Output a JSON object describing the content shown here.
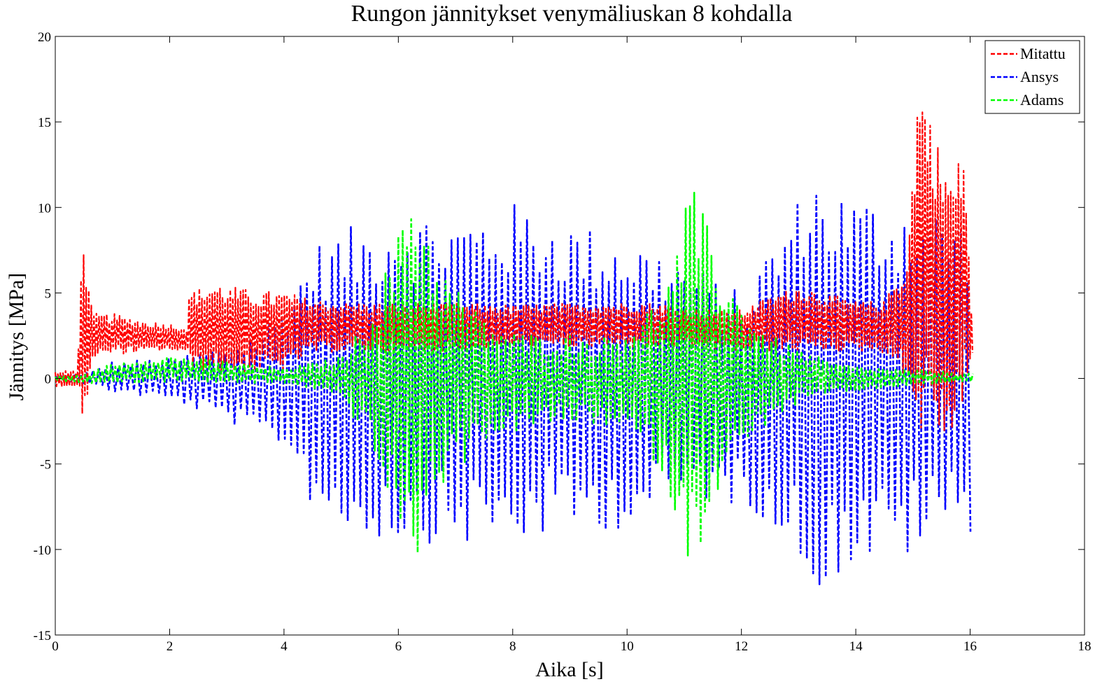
{
  "chart_data": {
    "type": "line",
    "title": "Rungon jännitykset venymäliuskan 8 kohdalla",
    "xlabel": "Aika [s]",
    "ylabel": "Jännitys [MPa]",
    "xlim": [
      0,
      18
    ],
    "ylim": [
      -15,
      20
    ],
    "x_ticks": [
      0,
      2,
      4,
      6,
      8,
      10,
      12,
      14,
      16,
      18
    ],
    "y_ticks": [
      -15,
      -10,
      -5,
      0,
      5,
      10,
      15,
      20
    ],
    "x_tick_labels": [
      "0",
      "2",
      "4",
      "6",
      "8",
      "10",
      "12",
      "14",
      "16",
      "18"
    ],
    "y_tick_labels": [
      "-15",
      "-10",
      "-5",
      "0",
      "5",
      "10",
      "15",
      "20"
    ],
    "grid": false,
    "legend_position": "top-right",
    "series": [
      {
        "name": "Mitattu",
        "color": "#ff0000",
        "style": "dashed",
        "envelope_upper": [
          [
            0,
            0.4
          ],
          [
            0.38,
            0.5
          ],
          [
            0.45,
            6
          ],
          [
            0.5,
            9.7
          ],
          [
            0.56,
            6
          ],
          [
            0.65,
            3.8
          ],
          [
            1,
            3.8
          ],
          [
            1.5,
            3.4
          ],
          [
            2,
            3.2
          ],
          [
            2.3,
            3
          ],
          [
            2.35,
            5.2
          ],
          [
            2.8,
            5.6
          ],
          [
            3.5,
            5.1
          ],
          [
            4,
            5.1
          ],
          [
            4.5,
            4.6
          ],
          [
            5.5,
            4.4
          ],
          [
            6,
            4.4
          ],
          [
            7,
            4.4
          ],
          [
            8,
            4.3
          ],
          [
            9,
            4.4
          ],
          [
            10,
            4.5
          ],
          [
            10.5,
            4.4
          ],
          [
            11,
            4.2
          ],
          [
            12,
            4
          ],
          [
            12.5,
            4.8
          ],
          [
            13,
            5.4
          ],
          [
            13.5,
            5
          ],
          [
            14,
            4.5
          ],
          [
            14.5,
            4.5
          ],
          [
            14.9,
            7
          ],
          [
            15.1,
            18.1
          ],
          [
            15.3,
            15.5
          ],
          [
            15.5,
            13
          ],
          [
            15.7,
            12
          ],
          [
            15.9,
            13.7
          ],
          [
            16.05,
            2
          ]
        ],
        "envelope_lower": [
          [
            0,
            -0.5
          ],
          [
            0.38,
            -0.5
          ],
          [
            0.45,
            -2
          ],
          [
            0.5,
            -4.9
          ],
          [
            0.56,
            -1
          ],
          [
            0.65,
            1.2
          ],
          [
            1,
            1.4
          ],
          [
            1.5,
            1.5
          ],
          [
            2,
            1.6
          ],
          [
            2.3,
            1.5
          ],
          [
            2.35,
            0.5
          ],
          [
            3,
            0.3
          ],
          [
            4,
            0.5
          ],
          [
            4.5,
            1.5
          ],
          [
            5.5,
            1.6
          ],
          [
            6,
            1.5
          ],
          [
            7,
            1.6
          ],
          [
            8,
            1.8
          ],
          [
            9,
            1.8
          ],
          [
            10,
            1.8
          ],
          [
            10.5,
            1.8
          ],
          [
            11,
            1.8
          ],
          [
            12,
            1.6
          ],
          [
            13,
            1.6
          ],
          [
            14,
            1.6
          ],
          [
            14.5,
            1.5
          ],
          [
            14.9,
            0
          ],
          [
            15.1,
            -3.5
          ],
          [
            15.3,
            -2.5
          ],
          [
            15.5,
            -3.5
          ],
          [
            15.7,
            -3.8
          ],
          [
            15.9,
            -1
          ],
          [
            16.05,
            1.5
          ]
        ]
      },
      {
        "name": "Ansys",
        "color": "#0000ff",
        "style": "dashed",
        "envelope_upper": [
          [
            0,
            0.2
          ],
          [
            0.5,
            0.3
          ],
          [
            1,
            1
          ],
          [
            2,
            1.2
          ],
          [
            3,
            2
          ],
          [
            3.5,
            2.7
          ],
          [
            4,
            4.3
          ],
          [
            4.5,
            7.9
          ],
          [
            5,
            8.7
          ],
          [
            5.5,
            9.2
          ],
          [
            6,
            10
          ],
          [
            6.5,
            9.8
          ],
          [
            7,
            9.6
          ],
          [
            7.5,
            10
          ],
          [
            8,
            10.3
          ],
          [
            8.5,
            10
          ],
          [
            9,
            9.3
          ],
          [
            9.5,
            8.8
          ],
          [
            10,
            8.6
          ],
          [
            10.5,
            7.7
          ],
          [
            11,
            7
          ],
          [
            11.5,
            6
          ],
          [
            12,
            5
          ],
          [
            12.5,
            8
          ],
          [
            13,
            10.8
          ],
          [
            13.1,
            12.7
          ],
          [
            13.5,
            11.7
          ],
          [
            14,
            10.9
          ],
          [
            14.5,
            10.6
          ],
          [
            15,
            10.6
          ],
          [
            15.5,
            10
          ],
          [
            16,
            9.5
          ],
          [
            16.05,
            9
          ]
        ],
        "envelope_lower": [
          [
            0,
            -0.1
          ],
          [
            0.5,
            -0.3
          ],
          [
            1,
            -0.8
          ],
          [
            2,
            -1.3
          ],
          [
            3,
            -2.5
          ],
          [
            3.5,
            -3.5
          ],
          [
            4,
            -4
          ],
          [
            4.5,
            -7.6
          ],
          [
            5,
            -9.1
          ],
          [
            5.5,
            -9.4
          ],
          [
            6,
            -9.6
          ],
          [
            6.5,
            -9.6
          ],
          [
            7,
            -9.8
          ],
          [
            7.5,
            -9.8
          ],
          [
            8,
            -10
          ],
          [
            8.5,
            -9.4
          ],
          [
            9,
            -9.3
          ],
          [
            9.5,
            -8.9
          ],
          [
            10,
            -8.8
          ],
          [
            10.5,
            -8
          ],
          [
            11,
            -7
          ],
          [
            11.5,
            -7.3
          ],
          [
            12,
            -7.5
          ],
          [
            12.5,
            -8.4
          ],
          [
            13,
            -11
          ],
          [
            13.1,
            -12.5
          ],
          [
            13.5,
            -12.2
          ],
          [
            14,
            -11.1
          ],
          [
            14.5,
            -10.8
          ],
          [
            15,
            -10.5
          ],
          [
            15.5,
            -9.3
          ],
          [
            16,
            -9
          ],
          [
            16.05,
            -9
          ]
        ]
      },
      {
        "name": "Adams",
        "color": "#00ff00",
        "style": "dashed",
        "envelope_upper": [
          [
            0,
            0.1
          ],
          [
            0.5,
            0.2
          ],
          [
            1,
            0.9
          ],
          [
            2,
            1.3
          ],
          [
            3,
            1
          ],
          [
            4,
            0.6
          ],
          [
            4.5,
            0.9
          ],
          [
            5,
            1.3
          ],
          [
            5.5,
            3.8
          ],
          [
            6,
            8.5
          ],
          [
            6.2,
            11.9
          ],
          [
            6.4,
            10.5
          ],
          [
            6.7,
            6.8
          ],
          [
            7,
            5.5
          ],
          [
            7.5,
            3.5
          ],
          [
            8,
            2.8
          ],
          [
            8.5,
            2.5
          ],
          [
            9,
            2.6
          ],
          [
            9.5,
            2.4
          ],
          [
            10,
            3
          ],
          [
            10.5,
            4.5
          ],
          [
            10.8,
            6.5
          ],
          [
            11.1,
            11.5
          ],
          [
            11.3,
            10
          ],
          [
            11.6,
            7
          ],
          [
            12,
            4.5
          ],
          [
            12.5,
            2.5
          ],
          [
            13,
            1.8
          ],
          [
            13.5,
            1
          ],
          [
            14,
            0.7
          ],
          [
            15,
            0.5
          ],
          [
            16.05,
            0.3
          ]
        ],
        "envelope_lower": [
          [
            0,
            -0.1
          ],
          [
            0.5,
            -0.3
          ],
          [
            1,
            -0.3
          ],
          [
            2,
            -0.2
          ],
          [
            3,
            -0.3
          ],
          [
            4,
            -0.3
          ],
          [
            4.5,
            -0.6
          ],
          [
            5,
            -1.2
          ],
          [
            5.5,
            -3.8
          ],
          [
            6,
            -9
          ],
          [
            6.2,
            -11.8
          ],
          [
            6.4,
            -10
          ],
          [
            6.7,
            -6.6
          ],
          [
            7,
            -5.6
          ],
          [
            7.5,
            -3.6
          ],
          [
            8,
            -3.2
          ],
          [
            8.5,
            -2.8
          ],
          [
            9,
            -2.6
          ],
          [
            9.5,
            -2.8
          ],
          [
            10,
            -3.2
          ],
          [
            10.5,
            -5
          ],
          [
            10.8,
            -7.5
          ],
          [
            11.1,
            -11.6
          ],
          [
            11.3,
            -9.5
          ],
          [
            11.6,
            -6.5
          ],
          [
            12,
            -4.5
          ],
          [
            12.5,
            -2.5
          ],
          [
            13,
            -1.5
          ],
          [
            13.5,
            -1
          ],
          [
            14,
            -0.8
          ],
          [
            15,
            -0.4
          ],
          [
            16.05,
            -0.2
          ]
        ]
      }
    ]
  }
}
